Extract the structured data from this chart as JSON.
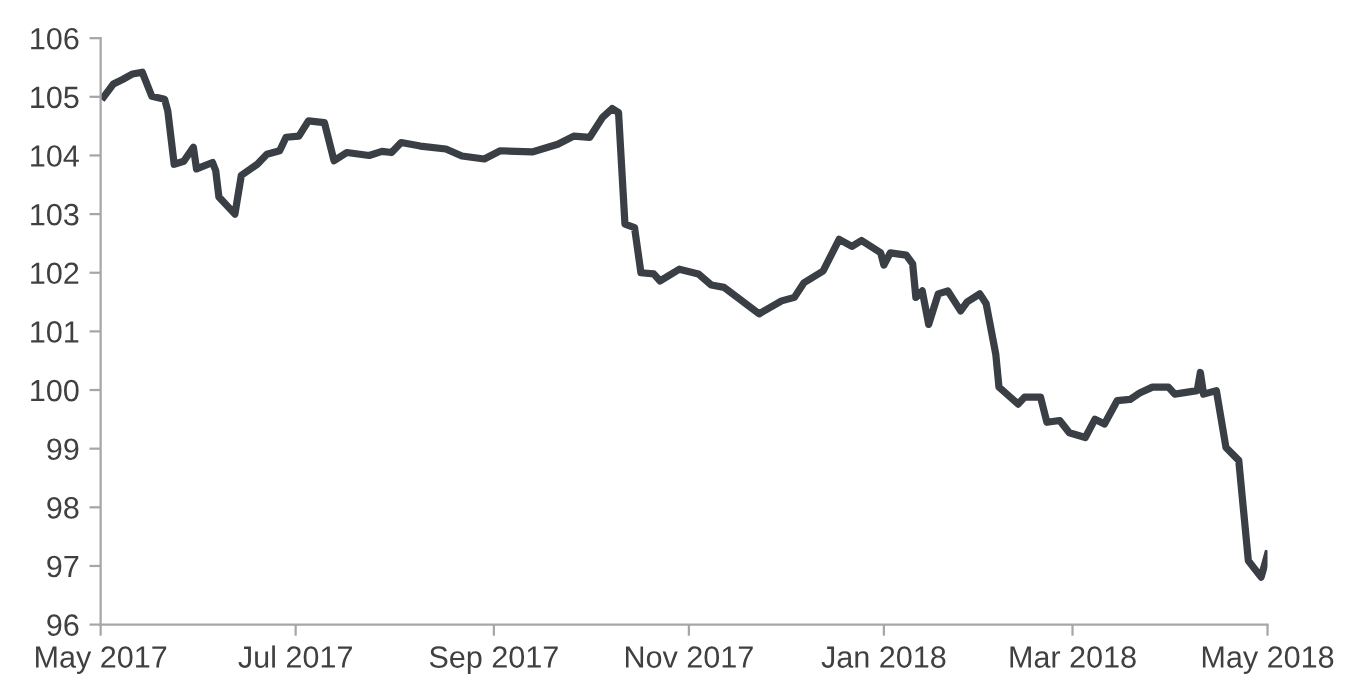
{
  "chart_data": {
    "type": "line",
    "x": [
      "2017-05-02",
      "2017-05-05",
      "2017-05-08",
      "2017-05-11",
      "2017-05-14",
      "2017-05-17",
      "2017-05-21",
      "2017-05-22",
      "2017-05-24",
      "2017-05-27",
      "2017-05-30",
      "2017-05-31",
      "2017-06-05",
      "2017-06-06",
      "2017-06-07",
      "2017-06-12",
      "2017-06-14",
      "2017-06-19",
      "2017-06-22",
      "2017-06-26",
      "2017-06-28",
      "2017-07-02",
      "2017-07-05",
      "2017-07-10",
      "2017-07-13",
      "2017-07-17",
      "2017-07-24",
      "2017-07-28",
      "2017-07-31",
      "2017-08-03",
      "2017-08-09",
      "2017-08-17",
      "2017-08-22",
      "2017-08-29",
      "2017-09-03",
      "2017-09-13",
      "2017-09-21",
      "2017-09-26",
      "2017-10-01",
      "2017-10-05",
      "2017-10-08",
      "2017-10-10",
      "2017-10-12",
      "2017-10-15",
      "2017-10-17",
      "2017-10-21",
      "2017-10-23",
      "2017-10-29",
      "2017-11-04",
      "2017-11-08",
      "2017-11-12",
      "2017-11-23",
      "2017-11-30",
      "2017-12-04",
      "2017-12-07",
      "2017-12-13",
      "2017-12-18",
      "2017-12-22",
      "2017-12-25",
      "2017-12-31",
      "2018-01-01",
      "2018-01-03",
      "2018-01-08",
      "2018-01-10",
      "2018-01-11",
      "2018-01-13",
      "2018-01-15",
      "2018-01-18",
      "2018-01-21",
      "2018-01-25",
      "2018-01-27",
      "2018-01-31",
      "2018-02-02",
      "2018-02-05",
      "2018-02-06",
      "2018-02-12",
      "2018-02-14",
      "2018-02-19",
      "2018-02-21",
      "2018-02-25",
      "2018-02-28",
      "2018-03-05",
      "2018-03-08",
      "2018-03-11",
      "2018-03-15",
      "2018-03-19",
      "2018-03-22",
      "2018-03-26",
      "2018-03-31",
      "2018-04-02",
      "2018-04-09",
      "2018-04-10",
      "2018-04-11",
      "2018-04-15",
      "2018-04-18",
      "2018-04-22",
      "2018-04-25",
      "2018-04-29",
      "2018-05-01"
    ],
    "series": [
      {
        "color": "#3a3f45",
        "values": [
          105.0,
          105.22,
          105.3,
          105.39,
          105.42,
          105.01,
          104.96,
          104.76,
          103.85,
          103.9,
          104.14,
          103.77,
          103.88,
          103.74,
          103.29,
          103.0,
          103.66,
          103.85,
          104.02,
          104.08,
          104.31,
          104.33,
          104.59,
          104.56,
          103.91,
          104.05,
          104.0,
          104.07,
          104.05,
          104.22,
          104.16,
          104.11,
          103.99,
          103.94,
          104.08,
          104.06,
          104.19,
          104.33,
          104.31,
          104.65,
          104.8,
          104.73,
          102.83,
          102.77,
          102.0,
          101.98,
          101.86,
          102.06,
          101.98,
          101.79,
          101.75,
          101.3,
          101.52,
          101.58,
          101.83,
          102.03,
          102.57,
          102.45,
          102.55,
          102.34,
          102.13,
          102.34,
          102.3,
          102.15,
          101.58,
          101.69,
          101.12,
          101.64,
          101.69,
          101.35,
          101.5,
          101.64,
          101.47,
          100.61,
          100.05,
          99.76,
          99.88,
          99.88,
          99.45,
          99.48,
          99.27,
          99.19,
          99.5,
          99.42,
          99.82,
          99.84,
          99.95,
          100.05,
          100.05,
          99.93,
          99.99,
          100.3,
          99.93,
          99.99,
          99.02,
          98.8,
          97.09,
          96.81,
          97.2
        ]
      }
    ],
    "xlim": [
      "2017-05-01",
      "2018-05-01"
    ],
    "xticks": [
      {
        "value": "2017-05-01",
        "label": "May 2017"
      },
      {
        "value": "2017-07-01",
        "label": "Jul 2017"
      },
      {
        "value": "2017-09-01",
        "label": "Sep 2017"
      },
      {
        "value": "2017-11-01",
        "label": "Nov 2017"
      },
      {
        "value": "2018-01-01",
        "label": "Jan 2018"
      },
      {
        "value": "2018-03-01",
        "label": "Mar 2018"
      },
      {
        "value": "2018-05-01",
        "label": "May 2018"
      }
    ],
    "ylim": [
      96,
      106
    ],
    "yticks": [
      96,
      97,
      98,
      99,
      100,
      101,
      102,
      103,
      104,
      105,
      106
    ],
    "grid": false,
    "legend": false,
    "marker": "none",
    "line_style": "solid"
  }
}
